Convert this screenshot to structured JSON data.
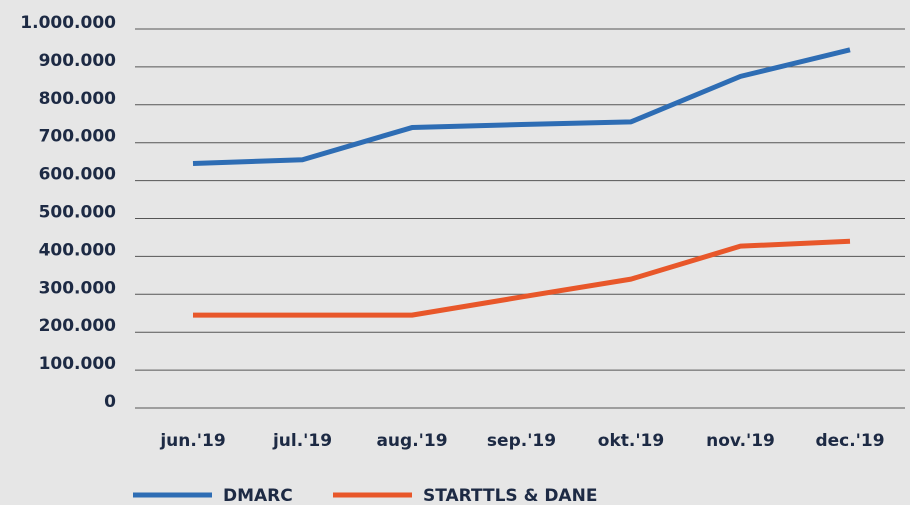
{
  "chart_data": {
    "type": "line",
    "categories": [
      "jun.'19",
      "jul.'19",
      "aug.'19",
      "sep.'19",
      "okt.'19",
      "nov.'19",
      "dec.'19"
    ],
    "series": [
      {
        "name": "DMARC",
        "color": "#2e6db4",
        "values": [
          645000,
          655000,
          740000,
          748000,
          755000,
          875000,
          945000
        ]
      },
      {
        "name": "STARTTLS & DANE",
        "color": "#e8572a",
        "values": [
          245000,
          245000,
          245000,
          293000,
          340000,
          427000,
          440000
        ]
      }
    ],
    "ylim": [
      0,
      1000000
    ],
    "yticks": [
      0,
      {
        "value": 100000,
        "label": "100.000"
      },
      {
        "value": 200000,
        "label": "200.000"
      },
      {
        "value": 300000,
        "label": "300.000"
      },
      {
        "value": 400000,
        "label": "400.000"
      },
      {
        "value": 500000,
        "label": "500.000"
      },
      {
        "value": 600000,
        "label": "600.000"
      },
      {
        "value": 700000,
        "label": "700.000"
      },
      {
        "value": 800000,
        "label": "800.000"
      },
      {
        "value": 900000,
        "label": "900.000"
      },
      {
        "value": 1000000,
        "label": "1.000.000"
      }
    ],
    "grid": true,
    "legend": "bottom"
  }
}
